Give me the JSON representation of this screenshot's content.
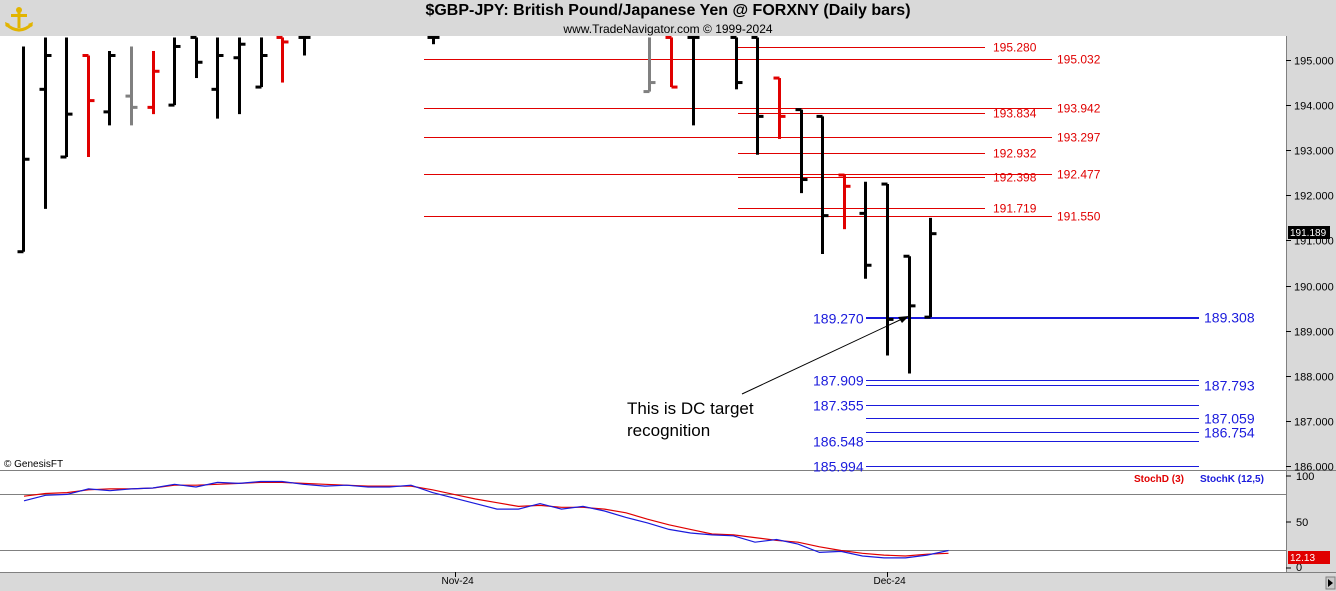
{
  "header": {
    "title": "$GBP-JPY:  British Pound/Japanese Yen @ FORXNY  (Daily bars)",
    "subtitle": "www.TradeNavigator.com © 1999-2024",
    "copyright": "© GenesisFT"
  },
  "colors": {
    "black": "#000000",
    "red": "#e00000",
    "gray": "#808080",
    "blue": "#1a1adc",
    "price_fill": "#000000",
    "stoch_fill": "#e00000",
    "bg": "#ffffff",
    "chrome": "#d9d9d9"
  },
  "annotation": {
    "line1": "This is DC target",
    "line2": "recognition"
  },
  "chart_data": [
    {
      "type": "ohlc",
      "panel": "price",
      "ylim": [
        185.8,
        195.5
      ],
      "yticks": [
        "195.000",
        "194.000",
        "193.000",
        "192.000",
        "191.000",
        "190.000",
        "189.000",
        "188.000",
        "187.000",
        "186.000"
      ],
      "ytick_values": [
        195,
        194,
        193,
        192,
        191,
        190,
        189,
        188,
        187,
        186
      ],
      "xticks": [
        "Nov-24",
        "Dec-24"
      ],
      "xtick_index": [
        20,
        40
      ],
      "last_price": "191.189",
      "bars": [
        {
          "i": 0,
          "o": 190.75,
          "h": 195.3,
          "l": 190.75,
          "c": 192.8,
          "col": "black"
        },
        {
          "i": 1,
          "o": 194.35,
          "h": 195.5,
          "l": 191.7,
          "c": 195.1,
          "col": "black"
        },
        {
          "i": 2,
          "o": 192.85,
          "h": 195.5,
          "l": 192.85,
          "c": 193.8,
          "col": "black"
        },
        {
          "i": 3,
          "o": 195.1,
          "h": 195.1,
          "l": 192.85,
          "c": 194.1,
          "col": "red"
        },
        {
          "i": 4,
          "o": 193.85,
          "h": 195.2,
          "l": 193.55,
          "c": 195.1,
          "col": "black"
        },
        {
          "i": 5,
          "o": 194.2,
          "h": 195.3,
          "l": 193.55,
          "c": 193.95,
          "col": "gray"
        },
        {
          "i": 6,
          "o": 193.95,
          "h": 195.2,
          "l": 193.8,
          "c": 194.75,
          "col": "red"
        },
        {
          "i": 7,
          "o": 194.0,
          "h": 195.5,
          "l": 194.0,
          "c": 195.3,
          "col": "black"
        },
        {
          "i": 8,
          "o": 195.5,
          "h": 195.5,
          "l": 194.6,
          "c": 194.95,
          "col": "black"
        },
        {
          "i": 9,
          "o": 194.35,
          "h": 195.5,
          "l": 193.7,
          "c": 195.1,
          "col": "black"
        },
        {
          "i": 10,
          "o": 195.05,
          "h": 195.5,
          "l": 193.8,
          "c": 195.35,
          "col": "black"
        },
        {
          "i": 11,
          "o": 194.4,
          "h": 195.5,
          "l": 194.4,
          "c": 195.1,
          "col": "black"
        },
        {
          "i": 12,
          "o": 195.5,
          "h": 195.5,
          "l": 194.5,
          "c": 195.4,
          "col": "red"
        },
        {
          "i": 13,
          "o": 195.5,
          "h": 195.5,
          "l": 195.1,
          "c": 195.5,
          "col": "black"
        },
        {
          "i": 19,
          "o": 195.5,
          "h": 195.5,
          "l": 195.35,
          "c": 195.5,
          "col": "black"
        },
        {
          "i": 29,
          "o": 194.3,
          "h": 195.5,
          "l": 194.3,
          "c": 194.5,
          "col": "gray"
        },
        {
          "i": 30,
          "o": 195.5,
          "h": 195.5,
          "l": 194.4,
          "c": 194.4,
          "col": "red"
        },
        {
          "i": 31,
          "o": 195.5,
          "h": 195.5,
          "l": 193.55,
          "c": 195.5,
          "col": "black"
        },
        {
          "i": 33,
          "o": 195.5,
          "h": 195.5,
          "l": 194.35,
          "c": 194.5,
          "col": "black"
        },
        {
          "i": 34,
          "o": 195.5,
          "h": 195.5,
          "l": 192.9,
          "c": 193.75,
          "col": "black"
        },
        {
          "i": 35,
          "o": 194.6,
          "h": 194.6,
          "l": 193.25,
          "c": 193.75,
          "col": "red"
        },
        {
          "i": 36,
          "o": 193.9,
          "h": 193.9,
          "l": 192.05,
          "c": 192.35,
          "col": "black"
        },
        {
          "i": 37,
          "o": 193.75,
          "h": 193.75,
          "l": 190.7,
          "c": 191.55,
          "col": "black"
        },
        {
          "i": 38,
          "o": 192.45,
          "h": 192.45,
          "l": 191.25,
          "c": 192.2,
          "col": "red"
        },
        {
          "i": 39,
          "o": 191.6,
          "h": 192.3,
          "l": 190.15,
          "c": 190.45,
          "col": "black"
        },
        {
          "i": 40,
          "o": 192.25,
          "h": 192.25,
          "l": 188.45,
          "c": 189.25,
          "col": "black"
        },
        {
          "i": 41,
          "o": 190.65,
          "h": 190.65,
          "l": 188.05,
          "c": 189.55,
          "col": "black"
        },
        {
          "i": 42,
          "o": 189.3,
          "h": 191.5,
          "l": 189.3,
          "c": 191.15,
          "col": "black"
        }
      ],
      "levels_red": [
        {
          "label": "195.280",
          "v": 195.28,
          "x1": 738,
          "x2": 985,
          "lx": 993
        },
        {
          "label": "195.032",
          "v": 195.032,
          "x1": 424,
          "x2": 1052,
          "lx": 1057
        },
        {
          "label": "193.942",
          "v": 193.942,
          "x1": 424,
          "x2": 1052,
          "lx": 1057
        },
        {
          "label": "193.834",
          "v": 193.834,
          "x1": 738,
          "x2": 985,
          "lx": 993
        },
        {
          "label": "193.297",
          "v": 193.297,
          "x1": 424,
          "x2": 1052,
          "lx": 1057
        },
        {
          "label": "192.932",
          "v": 192.932,
          "x1": 738,
          "x2": 985,
          "lx": 993
        },
        {
          "label": "192.477",
          "v": 192.477,
          "x1": 424,
          "x2": 1052,
          "lx": 1057
        },
        {
          "label": "192.398",
          "v": 192.398,
          "x1": 738,
          "x2": 985,
          "lx": 993
        },
        {
          "label": "191.719",
          "v": 191.719,
          "x1": 738,
          "x2": 985,
          "lx": 993
        },
        {
          "label": "191.550",
          "v": 191.55,
          "x1": 424,
          "x2": 1052,
          "lx": 1057
        }
      ],
      "levels_blue": [
        {
          "label": "189.270",
          "v": 189.27,
          "side": "left"
        },
        {
          "label": "189.308",
          "v": 189.308,
          "side": "right"
        },
        {
          "label": "187.909",
          "v": 187.909,
          "side": "left"
        },
        {
          "label": "187.793",
          "v": 187.793,
          "side": "right"
        },
        {
          "label": "187.355",
          "v": 187.355,
          "side": "left"
        },
        {
          "label": "187.059",
          "v": 187.059,
          "side": "right"
        },
        {
          "label": "186.754",
          "v": 186.754,
          "side": "right"
        },
        {
          "label": "186.548",
          "v": 186.548,
          "side": "left"
        },
        {
          "label": "185.994",
          "v": 185.994,
          "side": "left"
        }
      ]
    },
    {
      "type": "line",
      "panel": "stochastic",
      "ylim": [
        0,
        100
      ],
      "yticks": [
        "100",
        "50",
        "0"
      ],
      "ytick_values": [
        100,
        50,
        0
      ],
      "hlines": [
        80,
        20
      ],
      "last_value": "12.13",
      "legend": [
        "StochD (3)",
        "StochK (12,5)"
      ],
      "series": [
        {
          "name": "StochD (3)",
          "color": "red",
          "values": [
            [
              0,
              78
            ],
            [
              2,
              81
            ],
            [
              4,
              82
            ],
            [
              6,
              85
            ],
            [
              8,
              86
            ],
            [
              10,
              86
            ],
            [
              12,
              87
            ],
            [
              14,
              90
            ],
            [
              16,
              90
            ],
            [
              18,
              91
            ],
            [
              20,
              92
            ],
            [
              22,
              93
            ],
            [
              24,
              93
            ],
            [
              26,
              92
            ],
            [
              28,
              91
            ],
            [
              30,
              90
            ],
            [
              32,
              89
            ],
            [
              34,
              89
            ],
            [
              36,
              89
            ],
            [
              38,
              85
            ],
            [
              40,
              80
            ],
            [
              42,
              75
            ],
            [
              44,
              71
            ],
            [
              46,
              67
            ],
            [
              48,
              68
            ],
            [
              50,
              66
            ],
            [
              52,
              66
            ],
            [
              54,
              64
            ],
            [
              56,
              60
            ],
            [
              58,
              53
            ],
            [
              60,
              47
            ],
            [
              62,
              42
            ],
            [
              64,
              37
            ],
            [
              66,
              36
            ],
            [
              68,
              33
            ],
            [
              70,
              30
            ],
            [
              72,
              28
            ],
            [
              74,
              23
            ],
            [
              76,
              19
            ],
            [
              78,
              16
            ],
            [
              80,
              14
            ],
            [
              82,
              13
            ],
            [
              84,
              15
            ],
            [
              86,
              16
            ]
          ]
        },
        {
          "name": "StochK (12,5)",
          "color": "blue",
          "values": [
            [
              0,
              73
            ],
            [
              2,
              79
            ],
            [
              4,
              80
            ],
            [
              6,
              86
            ],
            [
              8,
              84
            ],
            [
              10,
              86
            ],
            [
              12,
              87
            ],
            [
              14,
              91
            ],
            [
              16,
              88
            ],
            [
              18,
              93
            ],
            [
              20,
              92
            ],
            [
              22,
              94
            ],
            [
              24,
              94
            ],
            [
              26,
              91
            ],
            [
              28,
              89
            ],
            [
              30,
              90
            ],
            [
              32,
              88
            ],
            [
              34,
              88
            ],
            [
              36,
              90
            ],
            [
              38,
              82
            ],
            [
              40,
              76
            ],
            [
              42,
              70
            ],
            [
              44,
              64
            ],
            [
              46,
              64
            ],
            [
              48,
              70
            ],
            [
              50,
              64
            ],
            [
              52,
              67
            ],
            [
              54,
              62
            ],
            [
              56,
              55
            ],
            [
              58,
              49
            ],
            [
              60,
              42
            ],
            [
              62,
              38
            ],
            [
              64,
              36
            ],
            [
              66,
              35
            ],
            [
              68,
              28
            ],
            [
              70,
              31
            ],
            [
              72,
              26
            ],
            [
              74,
              17
            ],
            [
              76,
              18
            ],
            [
              78,
              13
            ],
            [
              80,
              11
            ],
            [
              82,
              11
            ],
            [
              84,
              14
            ],
            [
              86,
              19
            ]
          ]
        }
      ]
    }
  ]
}
